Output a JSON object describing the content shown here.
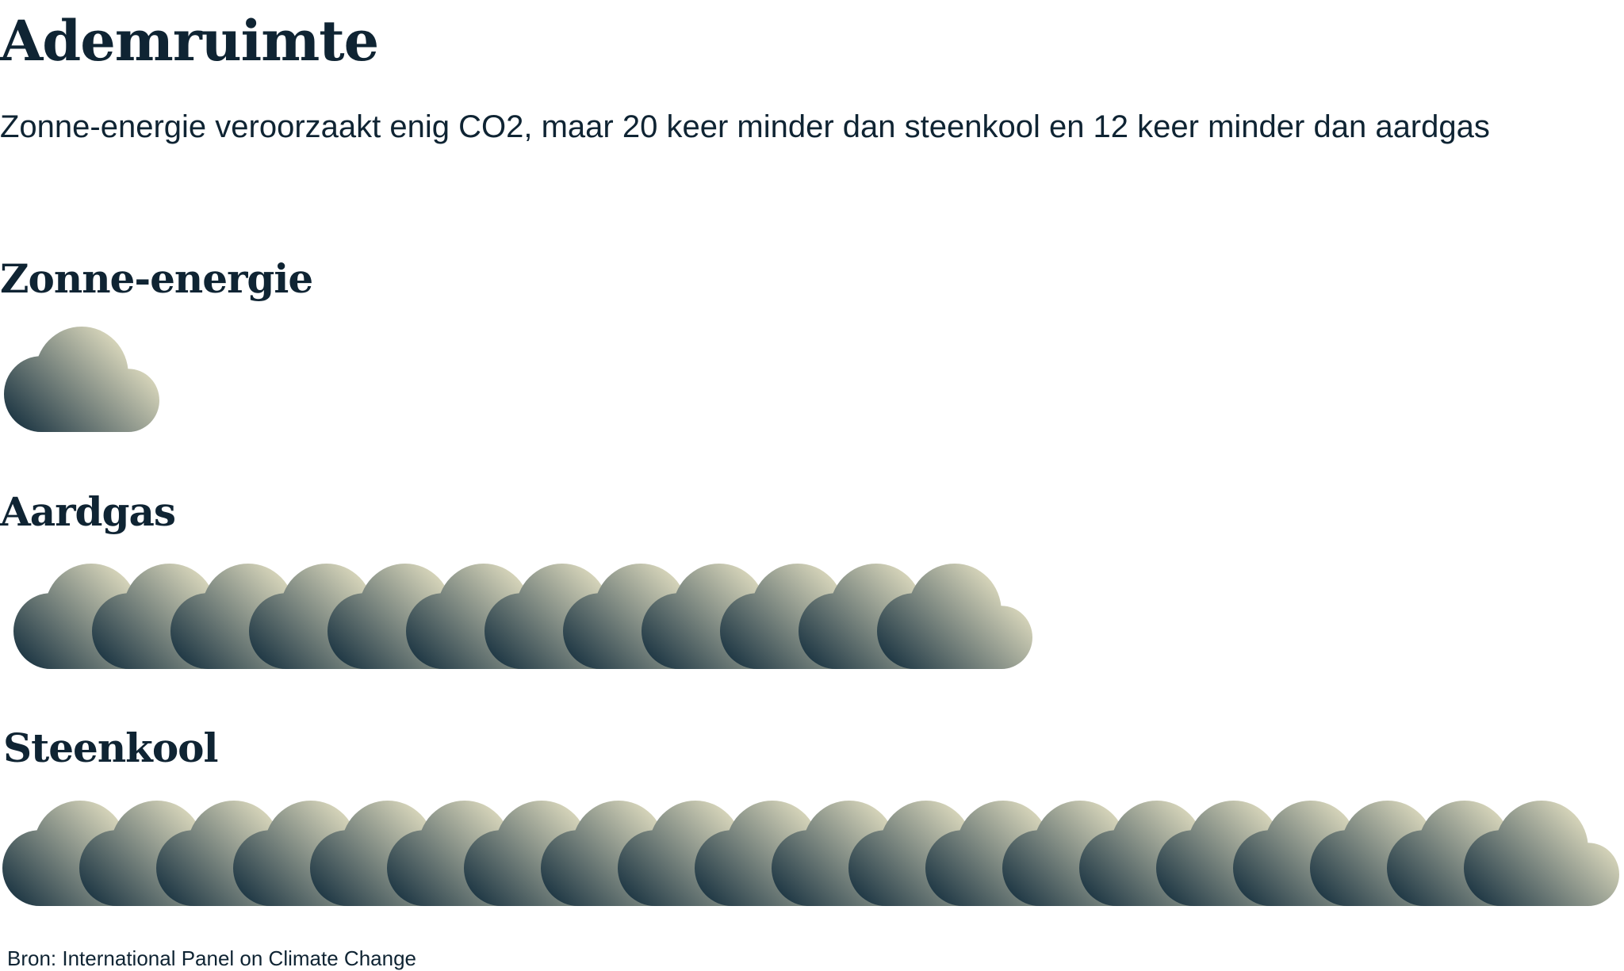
{
  "header": {
    "title": "Ademruimte",
    "subtitle": "Zonne-energie veroorzaakt enig CO2, maar 20 keer minder dan steenkool en 12 keer minder dan aardgas"
  },
  "chart_data": {
    "type": "pictogram",
    "icon": "cloud-icon",
    "categories": [
      "Zonne-energie",
      "Aardgas",
      "Steenkool"
    ],
    "values": [
      1,
      12,
      20
    ],
    "colors": {
      "gradient_dark": "#16303f",
      "gradient_light": "#e6e2c4",
      "text": "#0f2433"
    }
  },
  "footer": {
    "source": "Bron: International Panel on Climate Change"
  }
}
